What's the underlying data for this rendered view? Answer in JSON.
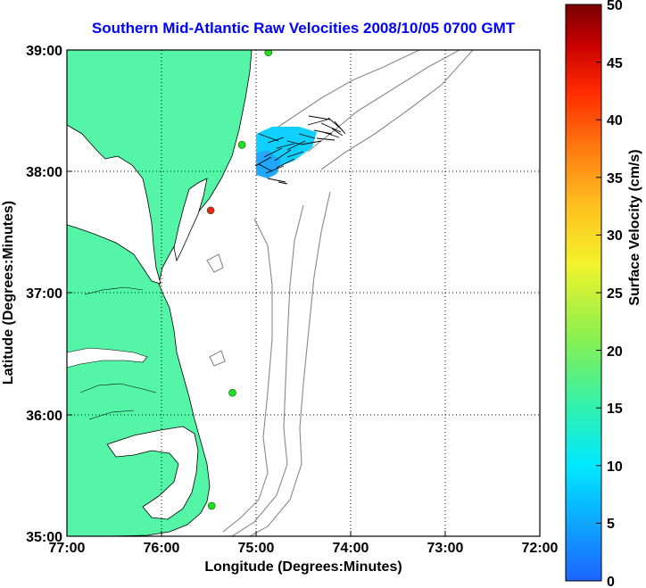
{
  "title": "Southern Mid-Atlantic Raw Velocities 2008/10/05 0700 GMT",
  "map": {
    "xlabel": "Longitude (Degrees:Minutes)",
    "ylabel": "Latitude (Degrees:Minutes)",
    "lon_range": [
      -77,
      -72
    ],
    "lat_range": [
      35,
      39
    ],
    "lon_ticks": [
      "77:00",
      "76:00",
      "75:00",
      "74:00",
      "73:00",
      "72:00"
    ],
    "lat_ticks": [
      "39:00",
      "38:00",
      "37:00",
      "36:00",
      "35:00"
    ],
    "land_color": "#55f5a8",
    "grid": true
  },
  "colorbar": {
    "label": "Surface Velocity (cm/s)",
    "min": 0,
    "max": 50,
    "ticks": [
      "0",
      "5",
      "10",
      "15",
      "20",
      "25",
      "30",
      "35",
      "40",
      "45",
      "50"
    ]
  },
  "stations": [
    {
      "lon": -74.87,
      "lat": 38.98,
      "color": "#22dd22"
    },
    {
      "lon": -75.15,
      "lat": 38.22,
      "color": "#22dd22"
    },
    {
      "lon": -75.48,
      "lat": 37.68,
      "color": "#ee2222"
    },
    {
      "lon": -75.25,
      "lat": 36.18,
      "color": "#22dd22"
    },
    {
      "lon": -75.47,
      "lat": 35.25,
      "color": "#22dd22"
    }
  ]
}
